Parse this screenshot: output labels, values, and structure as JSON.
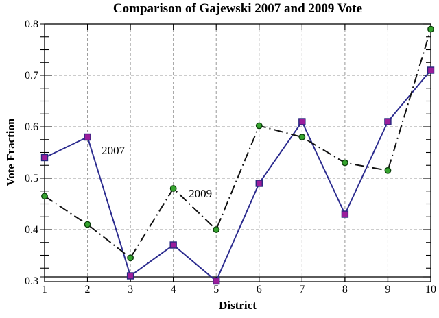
{
  "chart_data": {
    "type": "line",
    "title": "Comparison of Gajewski 2007 and 2009 Vote",
    "xlabel": "District",
    "ylabel": "Vote Fraction",
    "x": [
      1,
      2,
      3,
      4,
      5,
      6,
      7,
      8,
      9,
      10
    ],
    "xtick_labels": [
      "1",
      "2",
      "3",
      "4",
      "5",
      "6",
      "7",
      "8",
      "9",
      "10"
    ],
    "xlim": [
      1,
      10
    ],
    "ylim": [
      0.3,
      0.8
    ],
    "yticks": [
      0.3,
      0.4,
      0.5,
      0.6,
      0.7,
      0.8
    ],
    "ytick_labels": [
      "0.3",
      "0.4",
      "0.5",
      "0.6",
      "0.7",
      "0.8"
    ],
    "y_minor_step": 0.025,
    "grid": true,
    "grid_style": "dashed",
    "legend": "none (inline series annotations)",
    "series": [
      {
        "name": "2007",
        "values": [
          0.54,
          0.58,
          0.31,
          0.37,
          0.3,
          0.49,
          0.61,
          0.43,
          0.61,
          0.71
        ],
        "line_color": "#2c2c8f",
        "line_style": "solid",
        "marker": "square",
        "marker_fill": "#9b1d9b",
        "marker_edge": "#26267e"
      },
      {
        "name": "2009",
        "values": [
          0.465,
          0.41,
          0.345,
          0.48,
          0.4,
          0.602,
          0.58,
          0.53,
          0.515,
          0.79
        ],
        "line_color": "#111111",
        "line_style": "dash-dot",
        "marker": "circle",
        "marker_fill": "#36a42f",
        "marker_edge": "#0b3f0b"
      }
    ],
    "annotations": [
      {
        "text": "2007",
        "x": 2.6,
        "y": 0.553
      },
      {
        "text": "2009",
        "x": 4.63,
        "y": 0.469
      }
    ],
    "colors": {
      "grid": "#999999",
      "frame": "#000000",
      "background": "#ffffff",
      "text": "#000000"
    }
  }
}
